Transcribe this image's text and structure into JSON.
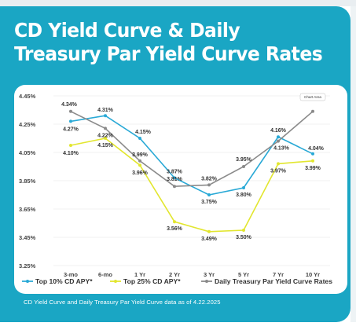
{
  "title": "CD Yield Curve & Daily Treasury Par Yield Curve Rates",
  "footnote": "CD Yield Curve and Daily Treasury Par Yield Curve data as of 4.22.2025",
  "tooltip": "Chart Area",
  "colors": {
    "card": "#1aa6c4",
    "top10": "#29a9d6",
    "top25": "#e2e62f",
    "treasury": "#8a8a8a"
  },
  "chart_data": {
    "type": "line",
    "categories": [
      "3-mo",
      "6-mo",
      "1 Yr",
      "2 Yr",
      "3 Yr",
      "5 Yr",
      "7 Yr",
      "10 Yr"
    ],
    "y_ticks": [
      "4.45%",
      "4.25%",
      "4.05%",
      "3.85%",
      "3.65%",
      "3.45%",
      "3.25%"
    ],
    "ylim": [
      3.25,
      4.45
    ],
    "grid": true,
    "legend_position": "bottom",
    "series": [
      {
        "name": "Top 10% CD APY*",
        "color": "#29a9d6",
        "values": [
          4.27,
          4.31,
          4.15,
          3.87,
          3.75,
          3.8,
          4.16,
          4.04
        ],
        "labels": [
          "4.27%",
          "4.31%",
          "4.15%",
          "3.87%",
          "3.75%",
          "3.80%",
          "4.16%",
          "4.04%"
        ]
      },
      {
        "name": "Top 25% CD APY*",
        "color": "#e2e62f",
        "values": [
          4.1,
          4.15,
          3.96,
          3.56,
          3.49,
          3.5,
          3.97,
          3.99
        ],
        "labels": [
          "4.10%",
          "4.15%",
          "3.96%",
          "3.56%",
          "3.49%",
          "3.50%",
          "3.97%",
          "3.99%"
        ]
      },
      {
        "name": "Daily Treasury Par Yield Curve Rates",
        "color": "#8a8a8a",
        "values": [
          4.34,
          4.22,
          3.99,
          3.81,
          3.82,
          3.95,
          4.13,
          4.34
        ],
        "labels": [
          "4.34%",
          "4.22%",
          "3.99%",
          "3.81%",
          "3.82%",
          "3.95%",
          "4.13%",
          ""
        ]
      }
    ]
  }
}
